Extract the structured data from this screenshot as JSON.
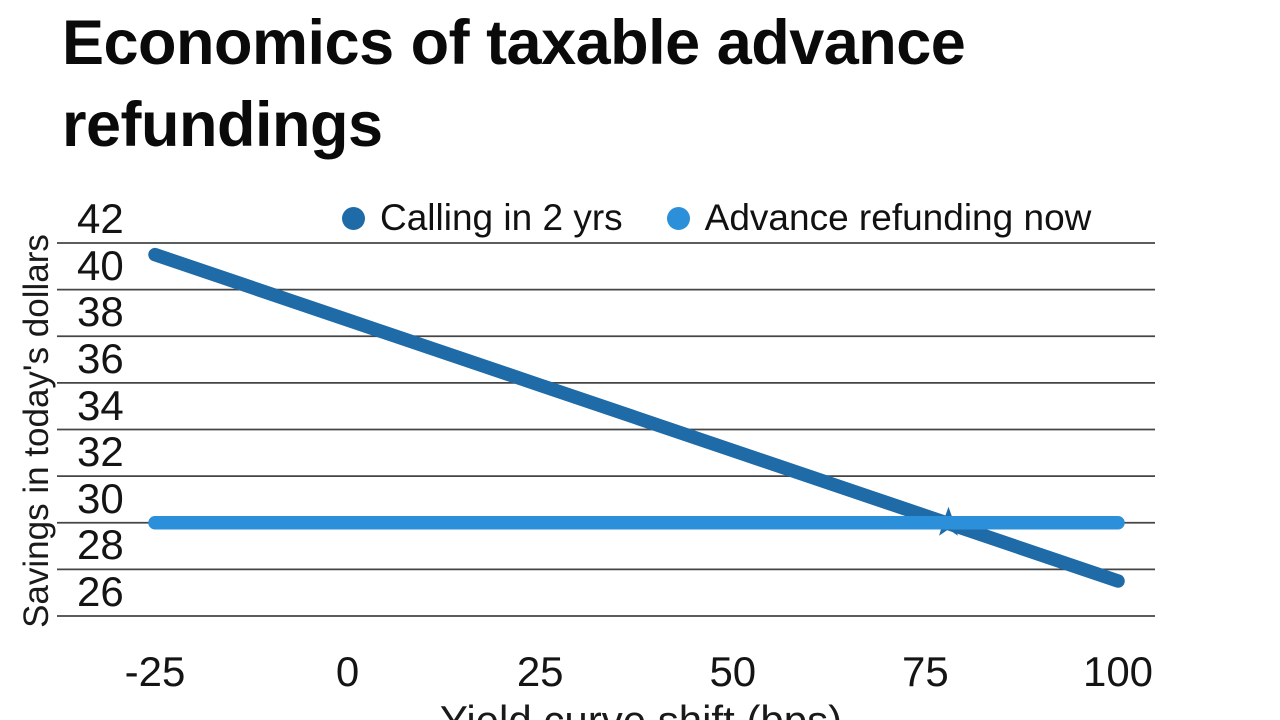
{
  "title": "Economics of taxable advance refundings",
  "colors": {
    "dark_blue": "#1f6ba8",
    "light_blue": "#2b90d9",
    "gridline": "#454545",
    "text": "#141414"
  },
  "chart_data": {
    "type": "line",
    "title": "Economics of taxable advance refundings",
    "xlabel": "Yield curve shift (bps)",
    "ylabel": "Savings in today's dollars",
    "x": [
      -25,
      0,
      25,
      50,
      75,
      100
    ],
    "xticks": [
      -25,
      0,
      25,
      50,
      75,
      100
    ],
    "yticks": [
      26,
      28,
      30,
      32,
      34,
      36,
      38,
      40,
      42
    ],
    "ylim": [
      24.8,
      42
    ],
    "xlim": [
      -25,
      100
    ],
    "grid": "horizontal",
    "legend_position": "top",
    "series": [
      {
        "name": "Calling in 2 yrs",
        "color": "#1f6ba8",
        "values": [
          41.5,
          38.7,
          35.9,
          33.1,
          30.3,
          27.5
        ]
      },
      {
        "name": "Advance refunding now",
        "color": "#2b90d9",
        "values": [
          30,
          30,
          30,
          30,
          30,
          30
        ]
      }
    ],
    "annotations": [
      {
        "type": "star-marker",
        "x": 78,
        "y": 30,
        "color": "#1f6ba8",
        "note": "breakeven point where both strategies have equal savings"
      }
    ]
  },
  "legend": {
    "item1": "Calling in 2 yrs",
    "item2": "Advance refunding now"
  }
}
